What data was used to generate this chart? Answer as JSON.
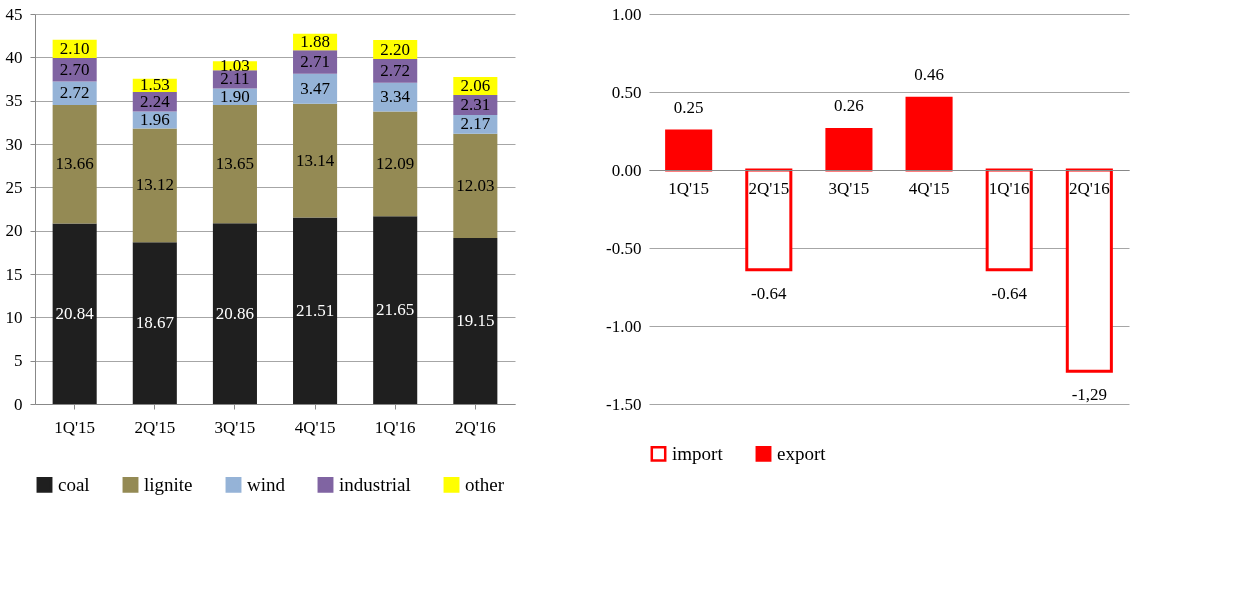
{
  "chart_data": [
    {
      "type": "bar",
      "stacked": true,
      "categories": [
        "1Q'15",
        "2Q'15",
        "3Q'15",
        "4Q'15",
        "1Q'16",
        "2Q'16"
      ],
      "ylim": [
        0,
        45
      ],
      "yticks": [
        0,
        5,
        10,
        15,
        20,
        25,
        30,
        35,
        40,
        45
      ],
      "grid": "y",
      "legend": "bottom",
      "series": [
        {
          "name": "coal",
          "color": "#1f1f1f",
          "values": [
            20.84,
            18.67,
            20.86,
            21.51,
            21.65,
            19.15
          ],
          "value_labels": [
            "20.84",
            "18.67",
            "20.86",
            "21.51",
            "21.65",
            "19.15"
          ]
        },
        {
          "name": "lignite",
          "color": "#948a54",
          "values": [
            13.66,
            13.12,
            13.65,
            13.14,
            12.09,
            12.03
          ],
          "value_labels": [
            "13.66",
            "13.12",
            "13.65",
            "13.14",
            "12.09",
            "12.03"
          ]
        },
        {
          "name": "wind",
          "color": "#95b3d7",
          "values": [
            2.72,
            1.96,
            1.9,
            3.47,
            3.34,
            2.17
          ],
          "value_labels": [
            "2.72",
            "1.96",
            "1.90",
            "3.47",
            "3.34",
            "2.17"
          ]
        },
        {
          "name": "industrial",
          "color": "#8064a2",
          "values": [
            2.7,
            2.24,
            2.11,
            2.71,
            2.72,
            2.31
          ],
          "value_labels": [
            "2.70",
            "2.24",
            "2.11",
            "2.71",
            "2.72",
            "2.31"
          ]
        },
        {
          "name": "other",
          "color": "#ffff00",
          "values": [
            2.1,
            1.53,
            1.03,
            1.88,
            2.2,
            2.06
          ],
          "value_labels": [
            "2.10",
            "1.53",
            "1.03",
            "1.88",
            "2.20",
            "2.06"
          ]
        }
      ]
    },
    {
      "type": "bar",
      "categories": [
        "1Q'15",
        "2Q'15",
        "3Q'15",
        "4Q'15",
        "1Q'16",
        "2Q'16"
      ],
      "ylim": [
        -1.5,
        1.0
      ],
      "yticks": [
        {
          "value": 1.0,
          "label": "1.00"
        },
        {
          "value": 0.5,
          "label": "0.50"
        },
        {
          "value": 0,
          "label": "0.00"
        },
        {
          "value": -0.5,
          "label": "-0.50"
        },
        {
          "value": -1.0,
          "label": "-1.00"
        },
        {
          "value": -1.5,
          "label": "-1.50"
        }
      ],
      "grid": "y",
      "legend": "bottom",
      "series": [
        {
          "name": "import",
          "color": "#ff0000",
          "values": [
            null,
            -0.64,
            null,
            null,
            -0.64,
            -1.29
          ],
          "value_labels": [
            null,
            "-0.64",
            null,
            null,
            "-0.64",
            "-1,29"
          ]
        },
        {
          "name": "export",
          "color": "#ff0000",
          "values": [
            0.25,
            null,
            0.26,
            0.46,
            null,
            null
          ],
          "value_labels": [
            "0.25",
            null,
            "0.26",
            "0.46",
            null,
            null
          ]
        }
      ]
    }
  ]
}
